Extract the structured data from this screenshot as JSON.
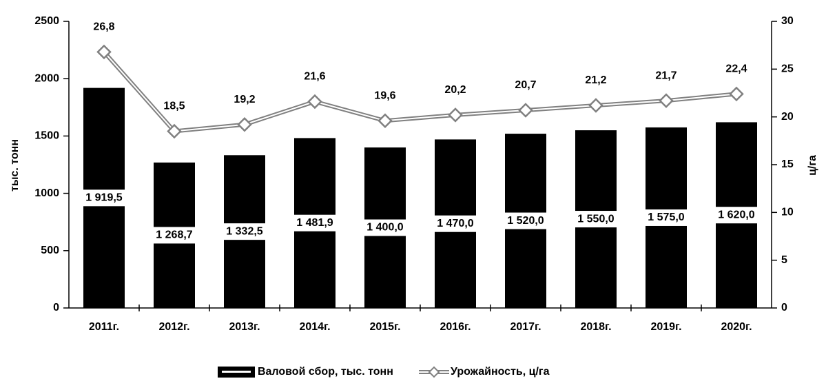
{
  "chart_data": {
    "type": "bar",
    "categories": [
      "2011г.",
      "2012г.",
      "2013г.",
      "2014г.",
      "2015г.",
      "2016г.",
      "2017г.",
      "2018г.",
      "2019г.",
      "2020г."
    ],
    "series": [
      {
        "name": "Валовой сбор, тыс. тонн",
        "color": "#000000",
        "values": [
          1919.5,
          1268.7,
          1332.5,
          1481.9,
          1400.0,
          1470.0,
          1520.0,
          1550.0,
          1575.0,
          1620.0
        ],
        "value_labels": [
          "1 919,5",
          "1 268,7",
          "1 332,5",
          "1 481,9",
          "1 400,0",
          "1 470,0",
          "1 520,0",
          "1 550,0",
          "1 575,0",
          "1 620,0"
        ]
      },
      {
        "name": "Урожайность, ц/га",
        "type": "line",
        "axis": "y2",
        "color": "#808080",
        "values": [
          26.8,
          18.5,
          19.2,
          21.6,
          19.6,
          20.2,
          20.7,
          21.2,
          21.7,
          22.4
        ],
        "value_labels": [
          "26,8",
          "18,5",
          "19,2",
          "21,6",
          "19,6",
          "20,2",
          "20,7",
          "21,2",
          "21,7",
          "22,4"
        ]
      }
    ],
    "ylabel": "тыс. тонн",
    "y2label": "ц/га",
    "ylim": [
      0,
      2500
    ],
    "yticks": [
      0,
      500,
      1000,
      1500,
      2000,
      2500
    ],
    "y2lim": [
      0,
      30
    ],
    "y2ticks": [
      0,
      5,
      10,
      15,
      20,
      25,
      30
    ],
    "legend": "bottom"
  }
}
